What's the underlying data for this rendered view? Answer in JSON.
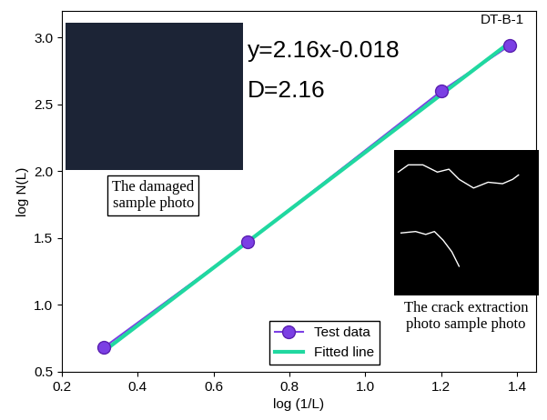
{
  "chart_data": {
    "type": "line",
    "x_label": "log (1/L)",
    "y_label": "log N(L)",
    "xlim": [
      0.2,
      1.45
    ],
    "xticks": [
      0.2,
      0.4,
      0.6,
      0.8,
      1.0,
      1.2,
      1.4
    ],
    "ylim": [
      0.5,
      3.2
    ],
    "yticks": [
      0.5,
      1.0,
      1.5,
      2.0,
      2.5,
      3.0
    ],
    "legend": "lower right",
    "grid": false,
    "series": [
      {
        "name": "Test data",
        "color": "#7b3fe4",
        "marker": "o",
        "line_style": "solid",
        "x": [
          0.31,
          0.69,
          1.2,
          1.38
        ],
        "values": [
          0.68,
          1.47,
          2.6,
          2.94
        ]
      },
      {
        "name": "Fitted line",
        "color": "#20d8a0",
        "marker": "none",
        "line_style": "solid",
        "x": [
          0.31,
          1.38
        ],
        "values": [
          0.652,
          2.963
        ]
      }
    ],
    "annotations": {
      "sample": "DT-B-1",
      "equation": "y=2.16x-0.018",
      "dimension": "D=2.16",
      "damaged_caption": "The damaged sample photo",
      "crack_caption": "The crack extraction photo sample photo"
    }
  }
}
